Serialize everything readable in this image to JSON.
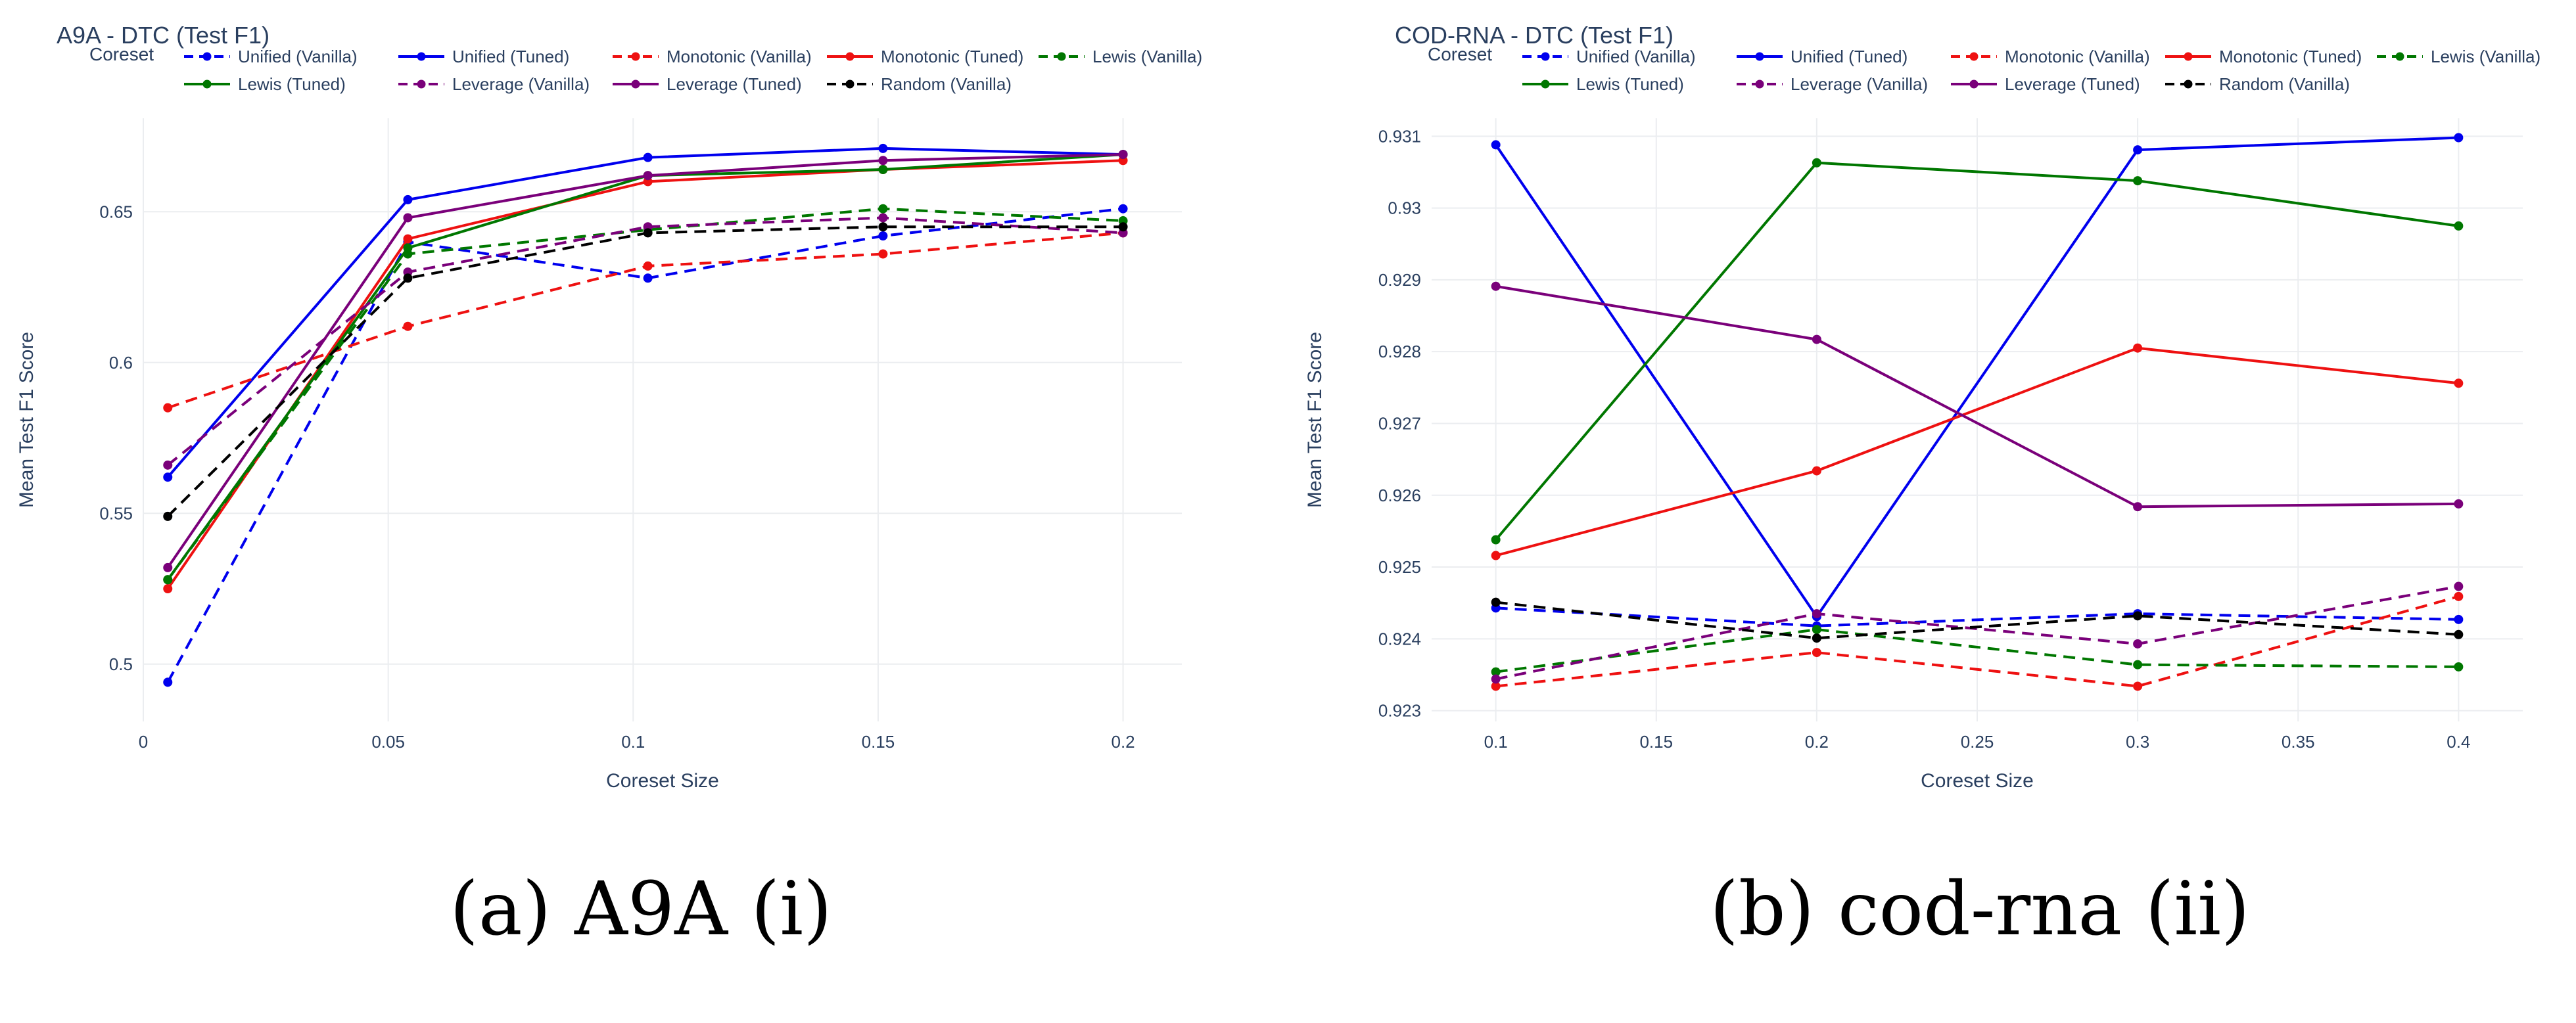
{
  "chart_data": [
    {
      "type": "line",
      "title": "A9A - DTC (Test F1)",
      "xlabel": "Coreset Size",
      "ylabel": "Mean Test F1 Score",
      "legend_title": "Coreset",
      "caption": "(a) A9A (i)",
      "xlim": [
        0,
        0.212
      ],
      "ylim": [
        0.481,
        0.681
      ],
      "xticks": [
        0,
        0.05,
        0.1,
        0.15,
        0.2
      ],
      "xtick_labels": [
        "0",
        "0.05",
        "0.1",
        "0.15",
        "0.2"
      ],
      "yticks": [
        0.5,
        0.55,
        0.6,
        0.65
      ],
      "ytick_labels": [
        "0.5",
        "0.55",
        "0.6",
        "0.65"
      ],
      "x": [
        0.005,
        0.054,
        0.103,
        0.151,
        0.2
      ],
      "series": [
        {
          "name": "Unified (Vanilla)",
          "color": "#0000ee",
          "dash": true,
          "values": [
            0.494,
            0.64,
            0.628,
            0.642,
            0.651
          ]
        },
        {
          "name": "Unified (Tuned)",
          "color": "#0000ee",
          "dash": false,
          "values": [
            0.562,
            0.654,
            0.668,
            0.671,
            0.669
          ]
        },
        {
          "name": "Monotonic (Vanilla)",
          "color": "#ee1111",
          "dash": true,
          "values": [
            0.585,
            0.612,
            0.632,
            0.636,
            0.643
          ]
        },
        {
          "name": "Monotonic (Tuned)",
          "color": "#ee1111",
          "dash": false,
          "values": [
            0.525,
            0.641,
            0.66,
            0.664,
            0.667
          ]
        },
        {
          "name": "Lewis (Vanilla)",
          "color": "#007700",
          "dash": true,
          "values": [
            0.528,
            0.636,
            0.644,
            0.651,
            0.647
          ]
        },
        {
          "name": "Lewis (Tuned)",
          "color": "#007700",
          "dash": false,
          "values": [
            0.528,
            0.638,
            0.662,
            0.664,
            0.669
          ]
        },
        {
          "name": "Leverage (Vanilla)",
          "color": "#7a007a",
          "dash": true,
          "values": [
            0.566,
            0.63,
            0.645,
            0.648,
            0.643
          ]
        },
        {
          "name": "Leverage (Tuned)",
          "color": "#7a007a",
          "dash": false,
          "values": [
            0.532,
            0.648,
            0.662,
            0.667,
            0.669
          ]
        },
        {
          "name": "Random (Vanilla)",
          "color": "#000000",
          "dash": true,
          "values": [
            0.549,
            0.628,
            0.643,
            0.645,
            0.645
          ]
        }
      ]
    },
    {
      "type": "line",
      "title": "COD-RNA - DTC (Test F1)",
      "xlabel": "Coreset Size",
      "ylabel": "Mean Test F1 Score",
      "legend_title": "Coreset",
      "caption": "(b) cod-rna (ii)",
      "xlim": [
        0.08,
        0.42
      ],
      "ylim": [
        0.92285,
        0.93125
      ],
      "xticks": [
        0.1,
        0.15,
        0.2,
        0.25,
        0.3,
        0.35,
        0.4
      ],
      "xtick_labels": [
        "0.1",
        "0.15",
        "0.2",
        "0.25",
        "0.3",
        "0.35",
        "0.4"
      ],
      "yticks": [
        0.923,
        0.924,
        0.925,
        0.926,
        0.927,
        0.928,
        0.929,
        0.93,
        0.931
      ],
      "ytick_labels": [
        "0.923",
        "0.924",
        "0.925",
        "0.926",
        "0.927",
        "0.928",
        "0.929",
        "0.93",
        "0.931"
      ],
      "x": [
        0.1,
        0.2,
        0.3,
        0.4
      ],
      "series": [
        {
          "name": "Unified (Vanilla)",
          "color": "#0000ee",
          "dash": true,
          "values": [
            0.92443,
            0.92418,
            0.92435,
            0.92427
          ]
        },
        {
          "name": "Unified (Tuned)",
          "color": "#0000ee",
          "dash": false,
          "values": [
            0.93088,
            0.92431,
            0.93081,
            0.93098
          ]
        },
        {
          "name": "Monotonic (Vanilla)",
          "color": "#ee1111",
          "dash": true,
          "values": [
            0.92334,
            0.92381,
            0.92334,
            0.92459
          ]
        },
        {
          "name": "Monotonic (Tuned)",
          "color": "#ee1111",
          "dash": false,
          "values": [
            0.92516,
            0.92634,
            0.92805,
            0.92756
          ]
        },
        {
          "name": "Lewis (Vanilla)",
          "color": "#007700",
          "dash": true,
          "values": [
            0.92354,
            0.92413,
            0.92364,
            0.92361
          ]
        },
        {
          "name": "Lewis (Tuned)",
          "color": "#007700",
          "dash": false,
          "values": [
            0.92538,
            0.93063,
            0.93038,
            0.92975
          ]
        },
        {
          "name": "Leverage (Vanilla)",
          "color": "#7a007a",
          "dash": true,
          "values": [
            0.92344,
            0.92435,
            0.92393,
            0.92473
          ]
        },
        {
          "name": "Leverage (Tuned)",
          "color": "#7a007a",
          "dash": false,
          "values": [
            0.92891,
            0.92817,
            0.92584,
            0.92588
          ]
        },
        {
          "name": "Random (Vanilla)",
          "color": "#000000",
          "dash": true,
          "values": [
            0.92451,
            0.92401,
            0.92432,
            0.92406
          ]
        }
      ]
    }
  ]
}
